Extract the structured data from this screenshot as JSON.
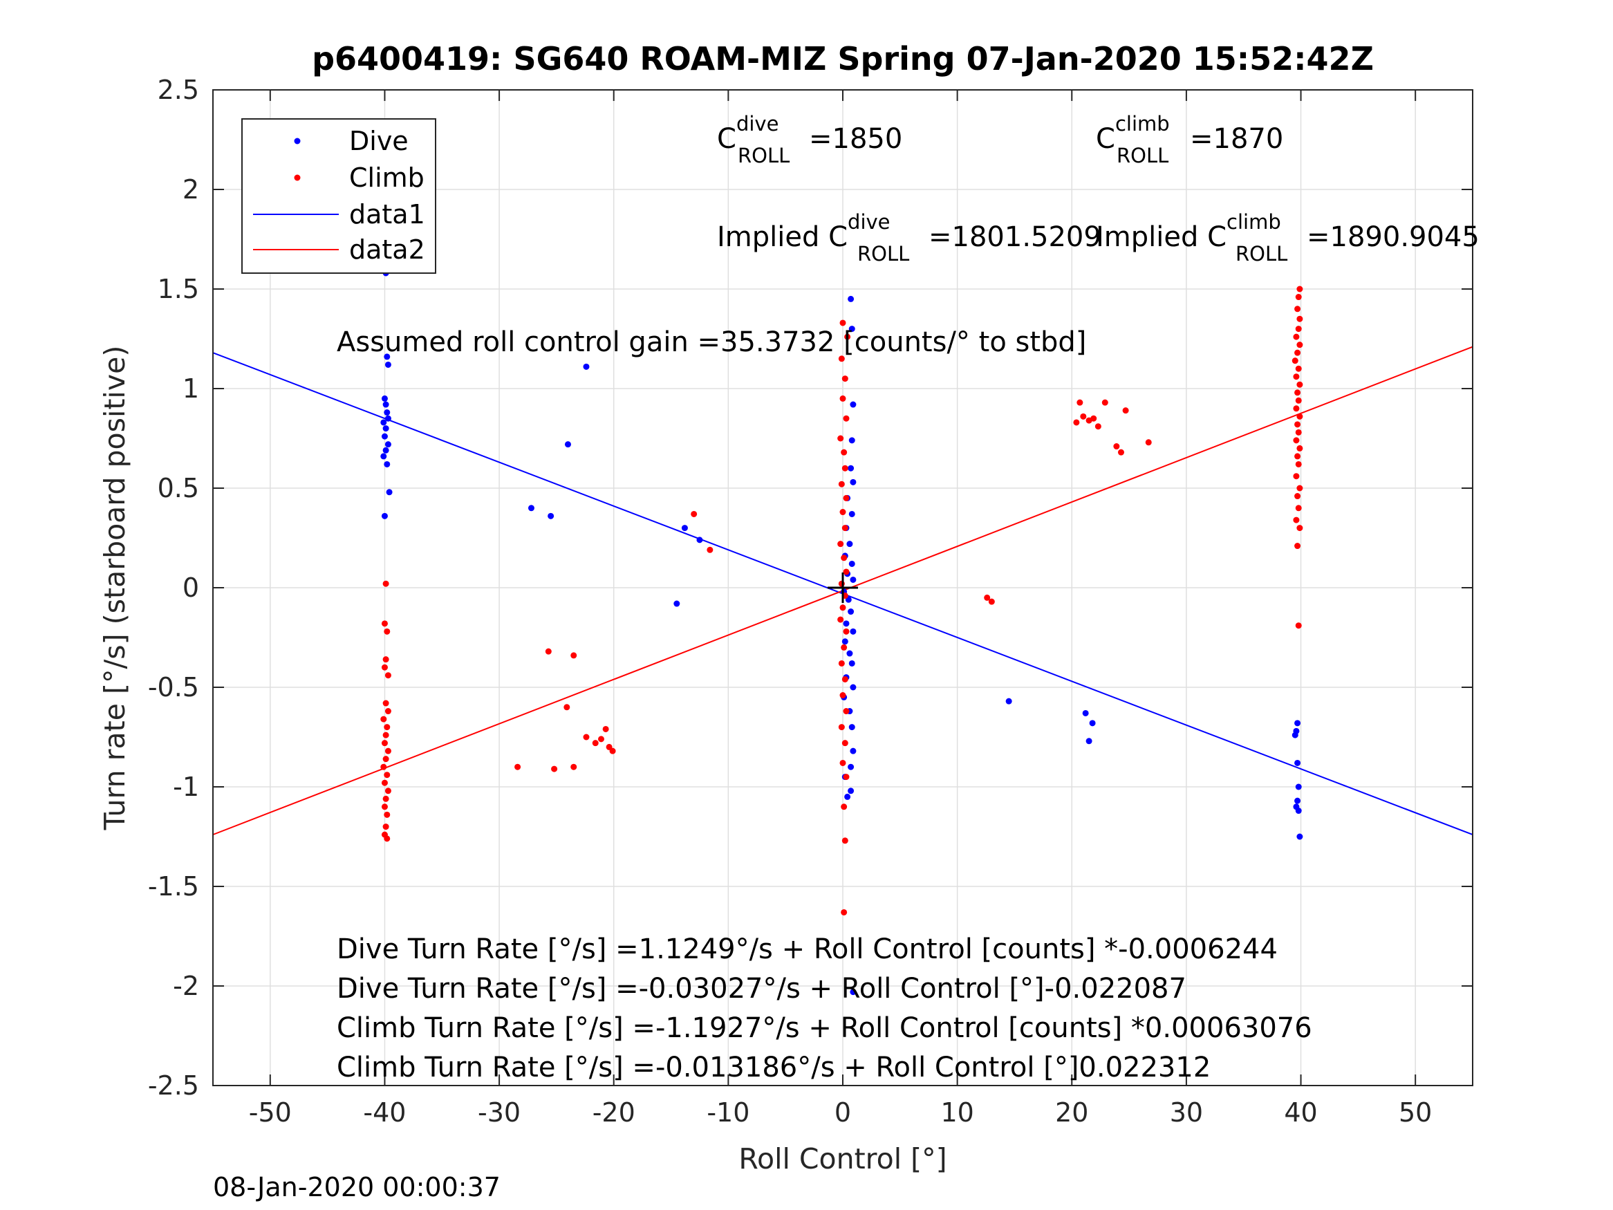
{
  "chart_data": {
    "type": "scatter",
    "title": "p6400419: SG640 ROAM-MIZ Spring 07-Jan-2020 15:52:42Z",
    "xlabel": "Roll Control [°]",
    "ylabel": "Turn rate [°/s] (starboard positive)",
    "xlim": [
      -55,
      55
    ],
    "ylim": [
      -2.5,
      2.5
    ],
    "x_ticks": [
      -50,
      -40,
      -30,
      -20,
      -10,
      0,
      10,
      20,
      30,
      40,
      50
    ],
    "y_ticks": [
      -2.5,
      -2,
      -1.5,
      -1,
      -0.5,
      0,
      0.5,
      1,
      1.5,
      2,
      2.5
    ],
    "x_tick_labels": [
      "-50",
      "-40",
      "-30",
      "-20",
      "-10",
      "0",
      "10",
      "20",
      "30",
      "40",
      "50"
    ],
    "y_tick_labels": [
      "-2.5",
      "-2",
      "-1.5",
      "-1",
      "-0.5",
      "0",
      "0.5",
      "1",
      "1.5",
      "2",
      "2.5"
    ],
    "grid": true,
    "legend_position": "top-left",
    "legend": [
      {
        "label": "Dive",
        "kind": "marker",
        "color": "#0000ff"
      },
      {
        "label": "Climb",
        "kind": "marker",
        "color": "#ff0000"
      },
      {
        "label": "data1",
        "kind": "line",
        "color": "#0000ff"
      },
      {
        "label": "data2",
        "kind": "line",
        "color": "#ff0000"
      }
    ],
    "series": [
      {
        "name": "Dive",
        "color": "#0000ff",
        "kind": "scatter",
        "points": [
          [
            -39.9,
            1.58
          ],
          [
            -39.8,
            1.16
          ],
          [
            -39.7,
            1.12
          ],
          [
            -40.0,
            0.95
          ],
          [
            -39.9,
            0.92
          ],
          [
            -39.8,
            0.88
          ],
          [
            -39.7,
            0.85
          ],
          [
            -40.1,
            0.83
          ],
          [
            -39.9,
            0.8
          ],
          [
            -40.0,
            0.76
          ],
          [
            -39.7,
            0.72
          ],
          [
            -39.9,
            0.69
          ],
          [
            -40.1,
            0.66
          ],
          [
            -39.8,
            0.62
          ],
          [
            -39.6,
            0.48
          ],
          [
            -40.0,
            0.36
          ],
          [
            -22.4,
            1.11
          ],
          [
            -24.0,
            0.72
          ],
          [
            -27.2,
            0.4
          ],
          [
            -25.5,
            0.36
          ],
          [
            -13.8,
            0.3
          ],
          [
            -12.5,
            0.24
          ],
          [
            -14.5,
            -0.08
          ],
          [
            0.7,
            1.45
          ],
          [
            0.8,
            1.3
          ],
          [
            0.9,
            0.92
          ],
          [
            0.8,
            0.74
          ],
          [
            0.7,
            0.6
          ],
          [
            0.9,
            0.53
          ],
          [
            0.4,
            0.45
          ],
          [
            0.8,
            0.37
          ],
          [
            0.3,
            0.3
          ],
          [
            0.6,
            0.22
          ],
          [
            0.2,
            0.16
          ],
          [
            0.8,
            0.12
          ],
          [
            0.4,
            0.07
          ],
          [
            0.9,
            0.04
          ],
          [
            0.1,
            -0.02
          ],
          [
            0.5,
            -0.06
          ],
          [
            0.7,
            -0.12
          ],
          [
            0.3,
            -0.18
          ],
          [
            0.9,
            -0.22
          ],
          [
            0.2,
            -0.27
          ],
          [
            0.6,
            -0.33
          ],
          [
            0.8,
            -0.38
          ],
          [
            0.3,
            -0.45
          ],
          [
            0.9,
            -0.5
          ],
          [
            0.1,
            -0.55
          ],
          [
            0.6,
            -0.62
          ],
          [
            0.8,
            -0.7
          ],
          [
            0.9,
            -0.82
          ],
          [
            0.7,
            -0.9
          ],
          [
            0.2,
            -0.95
          ],
          [
            0.7,
            -1.02
          ],
          [
            0.4,
            -1.05
          ],
          [
            0.9,
            -2.03
          ],
          [
            14.5,
            -0.57
          ],
          [
            21.2,
            -0.63
          ],
          [
            21.8,
            -0.68
          ],
          [
            21.5,
            -0.77
          ],
          [
            39.7,
            -0.68
          ],
          [
            39.6,
            -0.72
          ],
          [
            39.5,
            -0.74
          ],
          [
            39.7,
            -0.88
          ],
          [
            39.8,
            -1.0
          ],
          [
            39.7,
            -1.07
          ],
          [
            39.6,
            -1.1
          ],
          [
            39.8,
            -1.12
          ],
          [
            39.9,
            -1.25
          ]
        ]
      },
      {
        "name": "Climb",
        "color": "#ff0000",
        "kind": "scatter",
        "points": [
          [
            -39.9,
            0.02
          ],
          [
            -40.0,
            -0.18
          ],
          [
            -39.8,
            -0.22
          ],
          [
            -39.9,
            -0.36
          ],
          [
            -40.0,
            -0.4
          ],
          [
            -39.7,
            -0.44
          ],
          [
            -39.9,
            -0.58
          ],
          [
            -39.7,
            -0.62
          ],
          [
            -40.1,
            -0.66
          ],
          [
            -39.8,
            -0.7
          ],
          [
            -39.9,
            -0.74
          ],
          [
            -40.0,
            -0.78
          ],
          [
            -39.7,
            -0.82
          ],
          [
            -39.9,
            -0.86
          ],
          [
            -40.1,
            -0.9
          ],
          [
            -39.8,
            -0.94
          ],
          [
            -40.0,
            -0.98
          ],
          [
            -39.7,
            -1.02
          ],
          [
            -39.9,
            -1.06
          ],
          [
            -40.0,
            -1.1
          ],
          [
            -39.8,
            -1.14
          ],
          [
            -39.9,
            -1.2
          ],
          [
            -40.0,
            -1.24
          ],
          [
            -39.8,
            -1.26
          ],
          [
            -13.0,
            0.37
          ],
          [
            -11.6,
            0.19
          ],
          [
            -25.7,
            -0.32
          ],
          [
            -24.1,
            -0.6
          ],
          [
            -23.5,
            -0.34
          ],
          [
            -28.4,
            -0.9
          ],
          [
            -25.2,
            -0.91
          ],
          [
            -23.5,
            -0.9
          ],
          [
            -22.4,
            -0.75
          ],
          [
            -21.6,
            -0.78
          ],
          [
            -21.1,
            -0.76
          ],
          [
            -20.7,
            -0.71
          ],
          [
            -20.4,
            -0.8
          ],
          [
            -20.1,
            -0.82
          ],
          [
            0.0,
            1.33
          ],
          [
            0.4,
            1.26
          ],
          [
            -0.1,
            1.15
          ],
          [
            0.2,
            1.05
          ],
          [
            0.0,
            0.95
          ],
          [
            0.3,
            0.85
          ],
          [
            -0.2,
            0.75
          ],
          [
            0.1,
            0.68
          ],
          [
            0.2,
            0.6
          ],
          [
            -0.1,
            0.52
          ],
          [
            0.3,
            0.45
          ],
          [
            0.0,
            0.38
          ],
          [
            0.2,
            0.3
          ],
          [
            -0.2,
            0.22
          ],
          [
            0.1,
            0.15
          ],
          [
            0.3,
            0.08
          ],
          [
            -0.1,
            0.02
          ],
          [
            0.2,
            -0.04
          ],
          [
            0.0,
            -0.1
          ],
          [
            -0.2,
            -0.16
          ],
          [
            0.3,
            -0.22
          ],
          [
            0.1,
            -0.3
          ],
          [
            -0.1,
            -0.38
          ],
          [
            0.2,
            -0.46
          ],
          [
            0.0,
            -0.54
          ],
          [
            0.3,
            -0.62
          ],
          [
            -0.1,
            -0.7
          ],
          [
            0.2,
            -0.78
          ],
          [
            0.0,
            -0.88
          ],
          [
            0.3,
            -0.95
          ],
          [
            0.1,
            -1.1
          ],
          [
            0.2,
            -1.27
          ],
          [
            0.1,
            -1.63
          ],
          [
            12.6,
            -0.05
          ],
          [
            13.0,
            -0.07
          ],
          [
            20.4,
            0.83
          ],
          [
            20.7,
            0.93
          ],
          [
            21.0,
            0.86
          ],
          [
            21.5,
            0.84
          ],
          [
            21.9,
            0.85
          ],
          [
            22.3,
            0.81
          ],
          [
            22.9,
            0.93
          ],
          [
            23.9,
            0.71
          ],
          [
            24.3,
            0.68
          ],
          [
            24.7,
            0.89
          ],
          [
            26.7,
            0.73
          ],
          [
            39.9,
            1.5
          ],
          [
            39.8,
            1.46
          ],
          [
            39.7,
            1.4
          ],
          [
            39.9,
            1.35
          ],
          [
            39.8,
            1.3
          ],
          [
            39.6,
            1.26
          ],
          [
            39.9,
            1.22
          ],
          [
            39.7,
            1.18
          ],
          [
            39.5,
            1.14
          ],
          [
            39.8,
            1.1
          ],
          [
            39.6,
            1.06
          ],
          [
            39.9,
            1.02
          ],
          [
            39.7,
            0.98
          ],
          [
            39.8,
            0.94
          ],
          [
            39.6,
            0.9
          ],
          [
            39.9,
            0.86
          ],
          [
            39.7,
            0.82
          ],
          [
            39.8,
            0.78
          ],
          [
            39.6,
            0.74
          ],
          [
            39.9,
            0.7
          ],
          [
            39.7,
            0.66
          ],
          [
            39.8,
            0.62
          ],
          [
            39.6,
            0.56
          ],
          [
            39.9,
            0.5
          ],
          [
            39.7,
            0.46
          ],
          [
            39.8,
            0.4
          ],
          [
            39.6,
            0.34
          ],
          [
            39.9,
            0.3
          ],
          [
            39.7,
            0.21
          ],
          [
            39.8,
            -0.19
          ]
        ]
      },
      {
        "name": "data1",
        "color": "#0000ff",
        "kind": "line",
        "x": [
          -55,
          55
        ],
        "y": [
          1.18,
          -1.24
        ]
      },
      {
        "name": "data2",
        "color": "#ff0000",
        "kind": "line",
        "x": [
          -55,
          55
        ],
        "y": [
          -1.24,
          1.21
        ]
      }
    ],
    "annotations": {
      "dive_label": "C",
      "dive_sup": "dive",
      "dive_sub": "ROLL",
      "dive_value": "=1850",
      "climb_label": "C",
      "climb_sup": "climb",
      "climb_sub": "ROLL",
      "climb_value": "=1870",
      "implied_dive_label": "Implied C",
      "implied_dive_sup": "dive",
      "implied_dive_sub": "ROLL",
      "implied_dive_value": "=1801.5209",
      "implied_climb_label": "Implied C",
      "implied_climb_sup": "climb",
      "implied_climb_sub": "ROLL",
      "implied_climb_value": "=1890.9045",
      "gain": "Assumed roll control gain =35.3732 [counts/° to stbd]",
      "eq1": "Dive Turn Rate [°/s] =1.1249°/s + Roll Control [counts] *-0.0006244",
      "eq2": "Dive Turn Rate [°/s] =-0.03027°/s + Roll Control [°]-0.022087",
      "eq3": "Climb Turn Rate [°/s] =-1.1927°/s + Roll Control [counts] *0.00063076",
      "eq4": "Climb Turn Rate [°/s] =-0.013186°/s + Roll Control [°]0.022312"
    },
    "center_marker": [
      0,
      0
    ]
  },
  "footer_timestamp": "08-Jan-2020 00:00:37"
}
